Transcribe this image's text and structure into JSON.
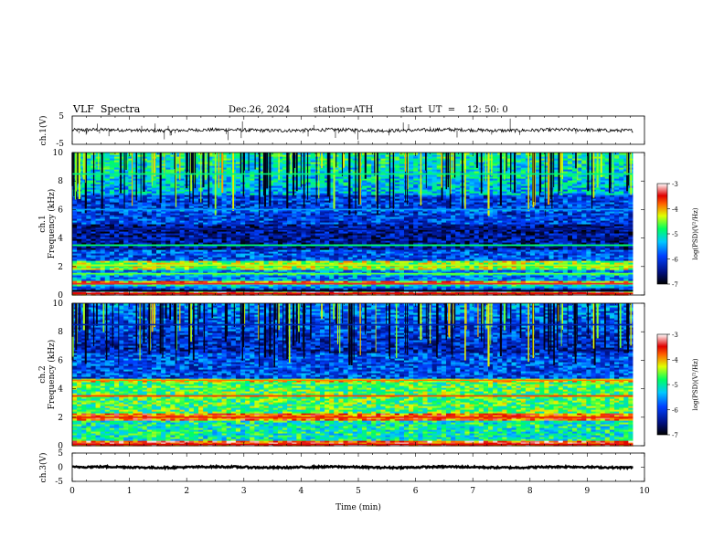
{
  "header": {
    "title": "VLF  Spectra",
    "date": "Dec.26, 2024",
    "station": "station=ATH",
    "start": "start  UT  =    12: 50: 0"
  },
  "chart_data": [
    {
      "type": "line",
      "id": "ch1",
      "ylabel": "ch.1(V)",
      "ylim": [
        -5,
        5
      ],
      "yticks": [
        5,
        -5
      ],
      "xlim": [
        0,
        10
      ],
      "series": [
        {
          "x_range": [
            0,
            9.8
          ],
          "baseline": 0,
          "noise_amplitude": 0.6,
          "spike_amplitude": 4.5
        }
      ]
    },
    {
      "type": "heatmap",
      "id": "ch1-spectrogram",
      "ylabel": "ch.1\nFrequency  (kHz)",
      "ylabel_line1": "ch.1",
      "ylabel_line2": "Frequency  (kHz)",
      "ylim": [
        0,
        10
      ],
      "yticks": [
        0,
        2,
        4,
        6,
        8,
        10
      ],
      "xlim": [
        0,
        10
      ],
      "data_x_range": [
        0,
        9.8
      ],
      "colorbar": {
        "label": "log(PSD)(V²/Hz)",
        "range": [
          -7,
          -3
        ],
        "ticks": [
          -3,
          -4,
          -5,
          -6,
          -7
        ]
      },
      "bands_khz": [
        {
          "f": 0.1,
          "level": -3.5
        },
        {
          "f": 0.3,
          "level": -7
        },
        {
          "f": 0.8,
          "level": -3.4
        },
        {
          "f": 1.5,
          "level": -4.6
        },
        {
          "f": 2.1,
          "level": -4.4
        },
        {
          "f": 3.5,
          "level": -4.8
        },
        {
          "f": 4.6,
          "level": -6.5
        },
        {
          "f": 6.0,
          "level": -5.5
        },
        {
          "f": 8.5,
          "level": -4.9
        }
      ]
    },
    {
      "type": "heatmap",
      "id": "ch2-spectrogram",
      "ylabel": "ch.2\nFrequency  (kHz)",
      "ylabel_line1": "ch.2",
      "ylabel_line2": "Frequency  (kHz)",
      "ylim": [
        0,
        10
      ],
      "yticks": [
        0,
        2,
        4,
        6,
        8,
        10
      ],
      "xlim": [
        0,
        10
      ],
      "data_x_range": [
        0,
        9.8
      ],
      "colorbar": {
        "label": "log(PSD)(V²/Hz)",
        "range": [
          -7,
          -3
        ],
        "ticks": [
          -3,
          -4,
          -5,
          -6,
          -7
        ]
      },
      "bands_khz": [
        {
          "f": 0.1,
          "level": -3.5
        },
        {
          "f": 2.0,
          "level": -3.6
        },
        {
          "f": 3.5,
          "level": -3.7
        },
        {
          "f": 4.6,
          "level": -3.9
        },
        {
          "f": 8.5,
          "level": -6.3
        }
      ]
    },
    {
      "type": "line",
      "id": "ch3",
      "ylabel": "ch.3(V)",
      "ylim": [
        -5,
        5
      ],
      "yticks": [
        5,
        0,
        -5
      ],
      "xlim": [
        0,
        10
      ],
      "xlabel": "Time  (min)",
      "xticks": [
        0,
        1,
        2,
        3,
        4,
        5,
        6,
        7,
        8,
        9,
        10
      ],
      "series": [
        {
          "x_range": [
            0,
            9.8
          ],
          "baseline": 0,
          "noise_amplitude": 0.3
        }
      ]
    }
  ]
}
